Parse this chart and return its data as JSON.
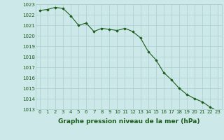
{
  "hours": [
    0,
    1,
    2,
    3,
    4,
    5,
    6,
    7,
    8,
    9,
    10,
    11,
    12,
    13,
    14,
    15,
    16,
    17,
    18,
    19,
    20,
    21,
    22,
    23
  ],
  "pressure": [
    1022.4,
    1022.5,
    1022.7,
    1022.6,
    1021.9,
    1021.0,
    1021.2,
    1020.4,
    1020.7,
    1020.6,
    1020.5,
    1020.7,
    1020.4,
    1019.8,
    1018.5,
    1017.7,
    1016.5,
    1015.8,
    1015.0,
    1014.4,
    1014.0,
    1013.7,
    1013.2,
    1012.8
  ],
  "ylim": [
    1013,
    1023
  ],
  "yticks": [
    1013,
    1014,
    1015,
    1016,
    1017,
    1018,
    1019,
    1020,
    1021,
    1022,
    1023
  ],
  "xticks": [
    0,
    1,
    2,
    3,
    4,
    5,
    6,
    7,
    8,
    9,
    10,
    11,
    12,
    13,
    14,
    15,
    16,
    17,
    18,
    19,
    20,
    21,
    22,
    23
  ],
  "line_color": "#1a5c1a",
  "marker": "D",
  "marker_size": 1.8,
  "bg_color": "#cce8e8",
  "grid_color": "#aacece",
  "xlabel": "Graphe pression niveau de la mer (hPa)",
  "xlabel_fontsize": 6.5,
  "tick_fontsize": 5.0,
  "fig_bg": "#cce8e8"
}
